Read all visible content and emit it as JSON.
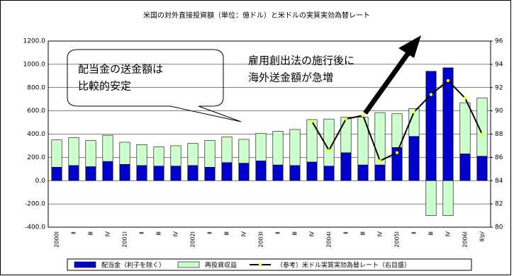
{
  "chart_data": {
    "type": "bar",
    "stacked": true,
    "title": "米国の対外直接投資額（単位：億ドル）と米ドルの実質実効為替レート",
    "categories": [
      "2000Ⅰ",
      "Ⅱ",
      "Ⅲ",
      "Ⅳ",
      "2001Ⅰ",
      "Ⅱ",
      "Ⅲ",
      "Ⅳ",
      "2002Ⅰ",
      "Ⅱ",
      "Ⅲ",
      "Ⅳ",
      "2003Ⅰ",
      "Ⅱ",
      "Ⅲ",
      "Ⅳ",
      "2004Ⅰ",
      "Ⅱ",
      "Ⅲ",
      "Ⅳ",
      "2005Ⅰ",
      "Ⅱ",
      "Ⅲ",
      "Ⅳ",
      "2006Ⅰ",
      "Ⅱ/p/"
    ],
    "series": [
      {
        "name": "配当金（利子を除く）",
        "type": "bar",
        "color": "#0000cc",
        "values": [
          115,
          130,
          120,
          165,
          140,
          130,
          125,
          125,
          130,
          115,
          155,
          150,
          170,
          135,
          130,
          160,
          125,
          240,
          135,
          135,
          285,
          380,
          940,
          970,
          230,
          210
        ]
      },
      {
        "name": "再投資収益",
        "type": "bar",
        "color": "#ccffcc",
        "values": [
          235,
          240,
          225,
          225,
          190,
          180,
          165,
          175,
          190,
          230,
          220,
          205,
          235,
          290,
          310,
          365,
          405,
          305,
          410,
          450,
          290,
          240,
          -300,
          -300,
          440,
          500
        ]
      },
      {
        "name": "（参考）米ドル実質実効為替レート（右目盛）",
        "type": "line",
        "axis": "y2",
        "color": "#000000",
        "marker_color": "#ffff00",
        "values": [
          null,
          null,
          null,
          null,
          null,
          null,
          null,
          null,
          null,
          null,
          null,
          null,
          null,
          null,
          null,
          89.1,
          86.6,
          89.3,
          89.6,
          85.7,
          86.4,
          89.9,
          91.4,
          92.6,
          91.1,
          88.0
        ]
      }
    ],
    "ylim": [
      -400,
      1200
    ],
    "yticks": [
      {
        "value": -400,
        "label": "-400.0"
      },
      {
        "value": -200,
        "label": "-200.0"
      },
      {
        "value": 0,
        "label": "0.0"
      },
      {
        "value": 200,
        "label": "200.0"
      },
      {
        "value": 400,
        "label": "400.0"
      },
      {
        "value": 600,
        "label": "600.0"
      },
      {
        "value": 800,
        "label": "800.0"
      },
      {
        "value": 1000,
        "label": "1000.0"
      },
      {
        "value": 1200,
        "label": "1200.0"
      }
    ],
    "y2lim": [
      80,
      96
    ],
    "y2ticks": [
      80,
      82,
      84,
      86,
      88,
      90,
      92,
      94,
      96
    ],
    "grid": true,
    "legend": "bottom",
    "annotations": [
      {
        "lines": [
          "配当金の送金額は",
          "比較的安定"
        ]
      },
      {
        "lines": [
          "雇用創出法の施行後に",
          "海外送金額が急増"
        ]
      }
    ]
  }
}
